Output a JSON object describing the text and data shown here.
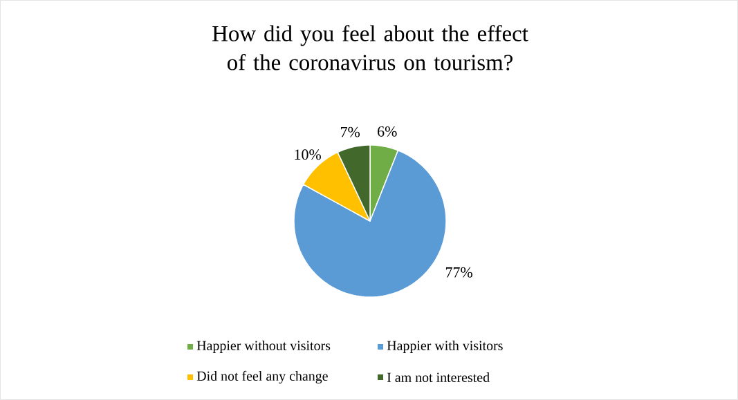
{
  "chart_data": {
    "type": "pie",
    "title": "How did you feel about the effect of the coronavirus on tourism?",
    "categories": [
      "Happier without visitors",
      "Happier with visitors",
      "Did not feel any change",
      "I am not interested"
    ],
    "values": [
      6,
      77,
      10,
      7
    ],
    "value_labels": [
      "6%",
      "77%",
      "10%",
      "7%"
    ],
    "colors": [
      "#70ad47",
      "#5b9bd5",
      "#ffc000",
      "#43682b"
    ],
    "legend": "bottom"
  }
}
